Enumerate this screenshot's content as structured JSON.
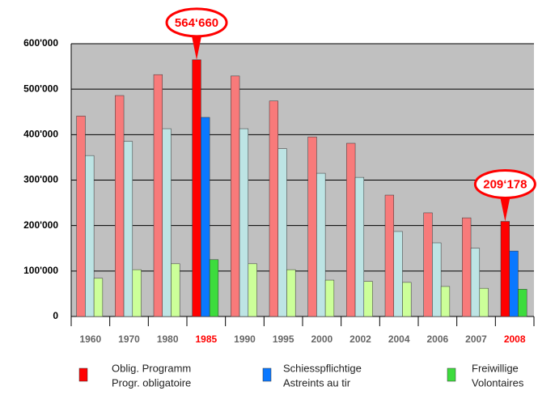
{
  "chart_data": {
    "type": "bar",
    "categories": [
      "1960",
      "1970",
      "1980",
      "1985",
      "1990",
      "1995",
      "2000",
      "2002",
      "2004",
      "2006",
      "2007",
      "2008"
    ],
    "category_colors": [
      "#666666",
      "#666666",
      "#666666",
      "#ff0000",
      "#666666",
      "#666666",
      "#666666",
      "#666666",
      "#666666",
      "#666666",
      "#666666",
      "#ff0000"
    ],
    "series": [
      {
        "name": [
          "Oblig. Programm",
          "Progr. obligatoire"
        ],
        "color": "#ff0000",
        "bar_colors": [
          "#f87a7a",
          "#f87a7a",
          "#f87a7a",
          "#ff0000",
          "#f87a7a",
          "#f87a7a",
          "#f87a7a",
          "#f87a7a",
          "#f87a7a",
          "#f87a7a",
          "#f87a7a",
          "#ff0000"
        ],
        "values": [
          441000,
          486000,
          532000,
          564660,
          529000,
          474000,
          395000,
          381000,
          267000,
          228000,
          217000,
          209178
        ],
        "value_labels": [
          null,
          null,
          null,
          "564‘660",
          null,
          null,
          null,
          null,
          null,
          null,
          null,
          "209‘178"
        ]
      },
      {
        "name": [
          "Schiesspflichtige",
          "Astreints au tir"
        ],
        "color": "#0a78ff",
        "bar_colors": [
          "#bde4e4",
          "#bde4e4",
          "#bde4e4",
          "#0a78ff",
          "#bde4e4",
          "#bde4e4",
          "#bde4e4",
          "#bde4e4",
          "#bde4e4",
          "#bde4e4",
          "#bde4e4",
          "#0a78ff"
        ],
        "values": [
          354000,
          385000,
          413000,
          438000,
          413000,
          369000,
          315000,
          306000,
          187000,
          162000,
          150000,
          144000
        ]
      },
      {
        "name": [
          "Freiwillige",
          "Volontaires"
        ],
        "color": "#3ddc3d",
        "bar_colors": [
          "#ccff99",
          "#ccff99",
          "#ccff99",
          "#3ddc3d",
          "#ccff99",
          "#ccff99",
          "#ccff99",
          "#ccff99",
          "#ccff99",
          "#ccff99",
          "#ccff99",
          "#3ddc3d"
        ],
        "values": [
          84000,
          103000,
          116000,
          125000,
          116000,
          103000,
          80000,
          77000,
          75000,
          66000,
          62000,
          60000
        ]
      }
    ],
    "ylim": [
      0,
      600000
    ],
    "yticks": [
      0,
      {
        "value": 100000,
        "label": "100'000"
      },
      {
        "value": 200000,
        "label": "200'000"
      },
      {
        "value": 300000,
        "label": "300'000"
      },
      {
        "value": 400000,
        "label": "400'000"
      },
      {
        "value": 500000,
        "label": "500'000"
      },
      {
        "value": 600000,
        "label": "600'000"
      }
    ],
    "grid": true,
    "background": "#c0c0c0"
  }
}
